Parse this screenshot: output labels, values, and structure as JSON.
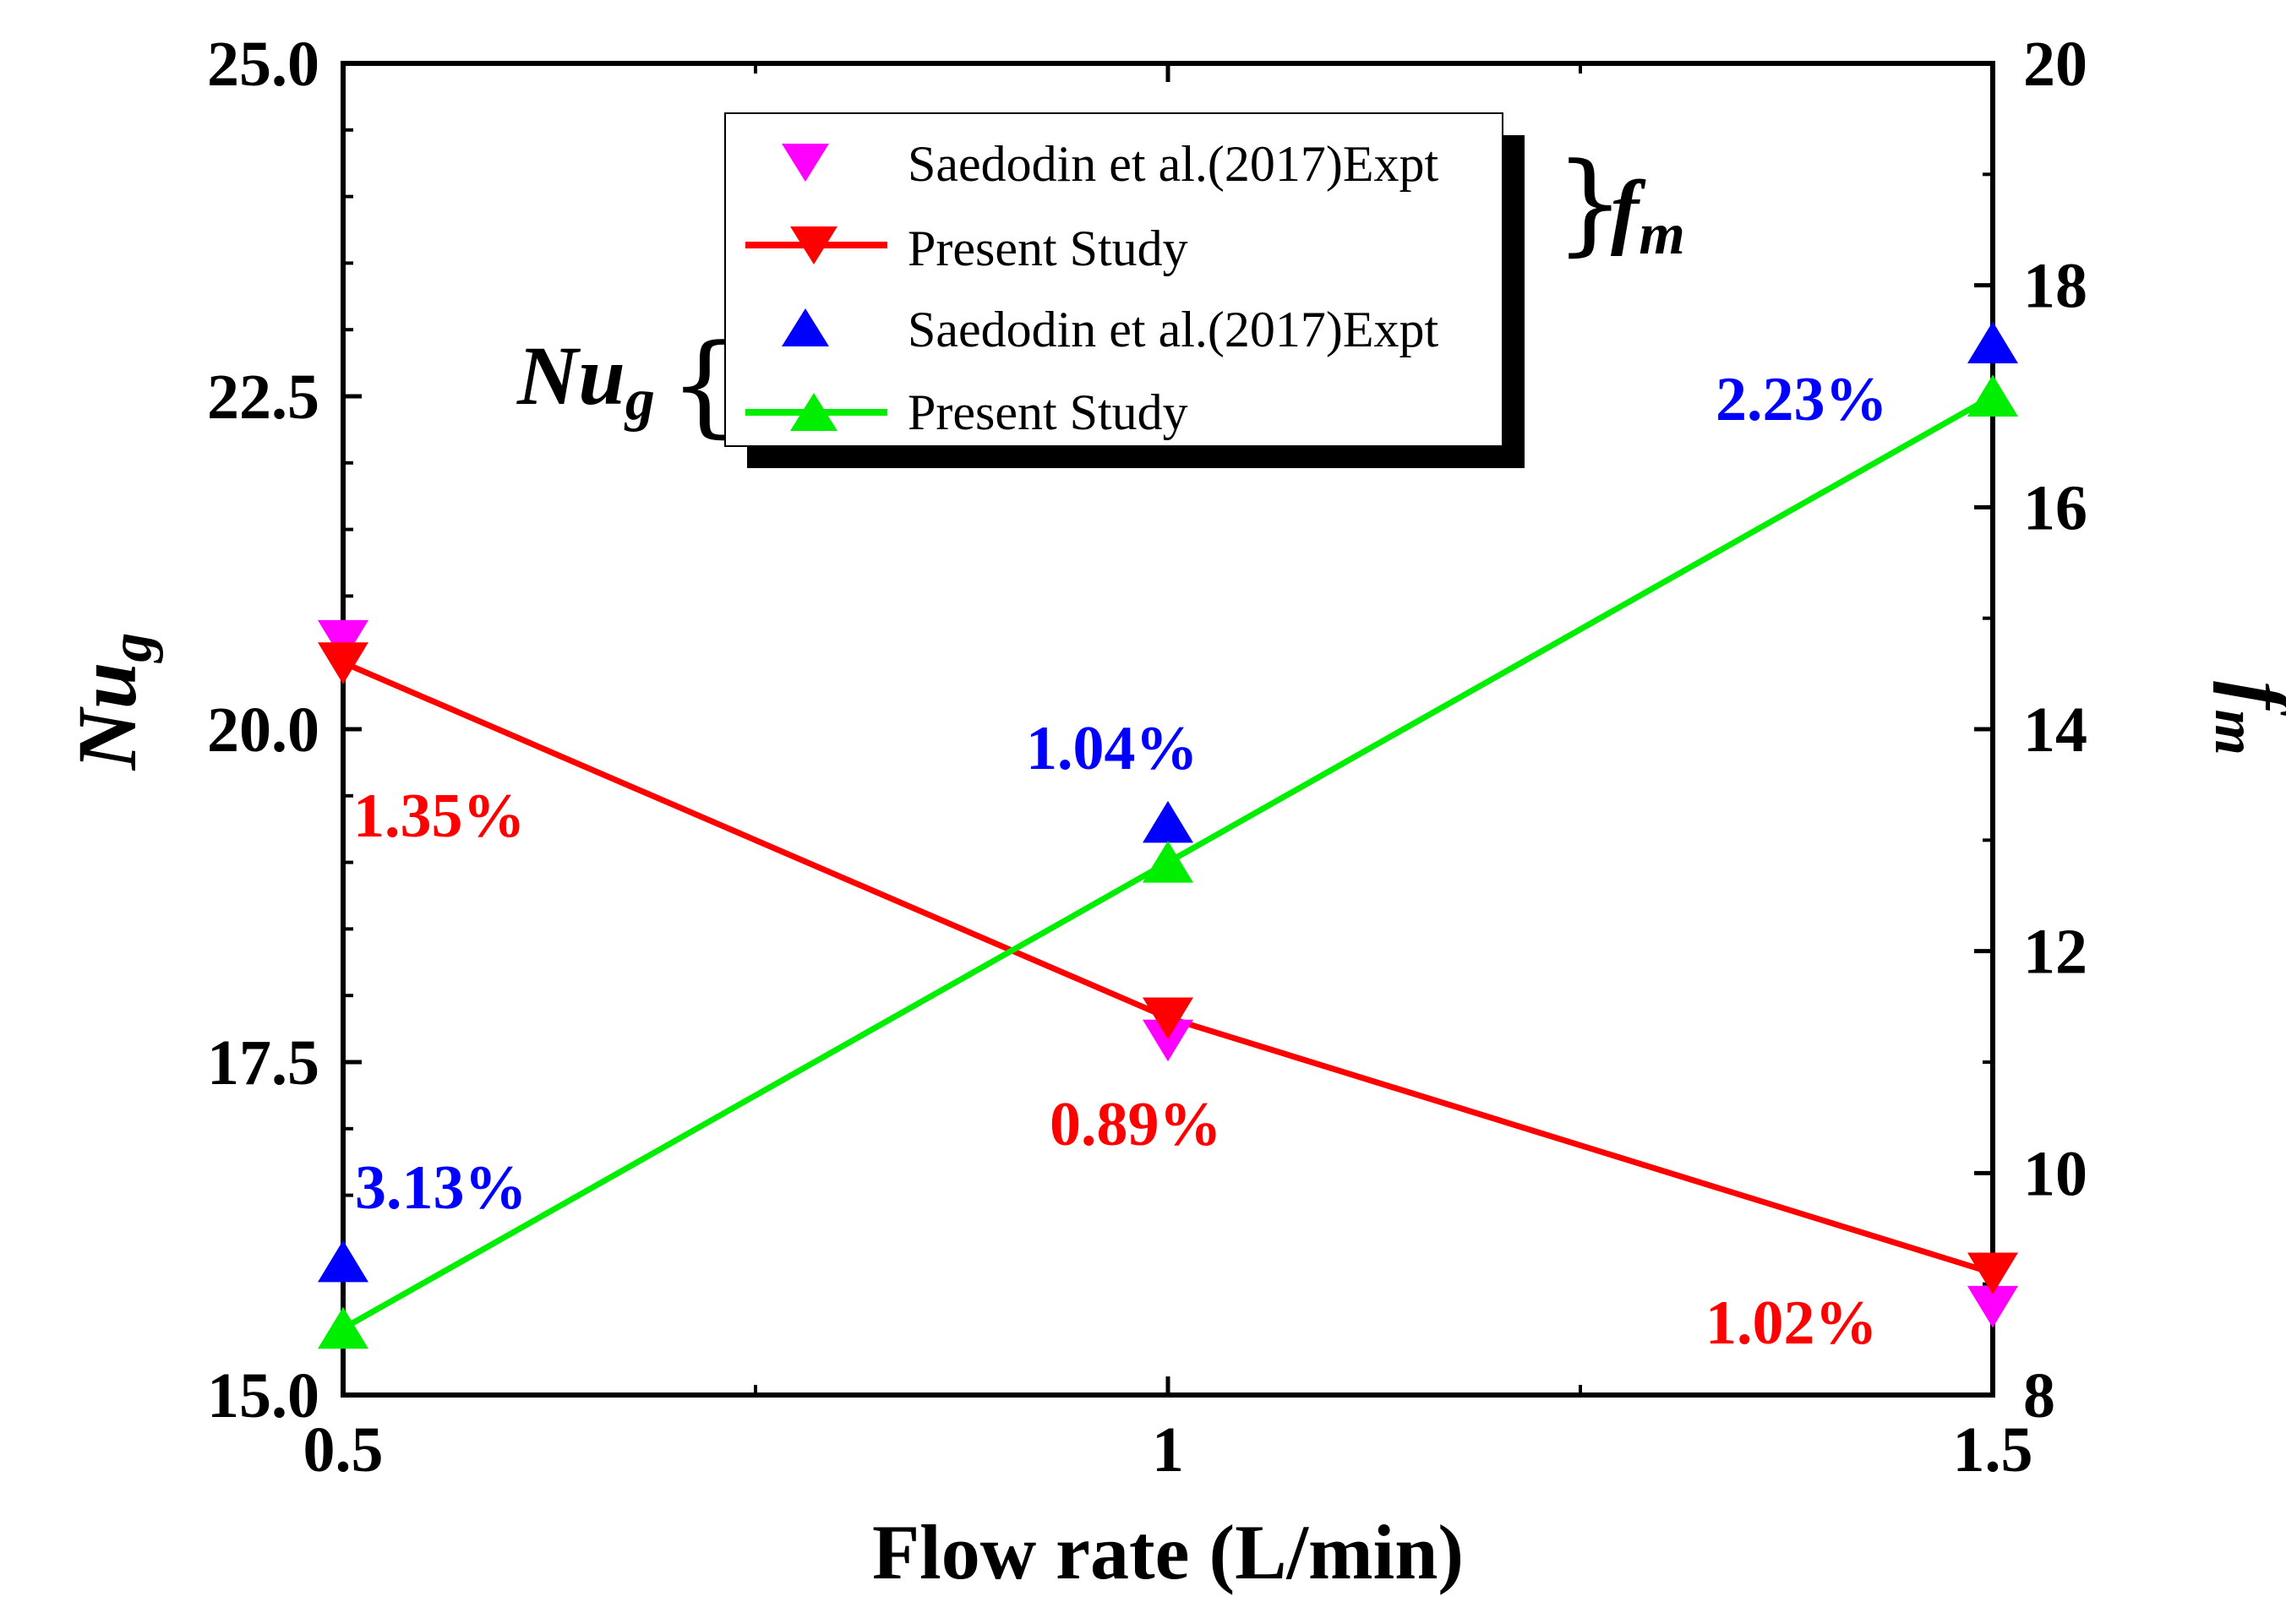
{
  "chart_data": {
    "type": "line",
    "xlabel": "Flow rate (L/min)",
    "x": [
      0.5,
      1,
      1.5
    ],
    "xticks": [
      "0.5",
      "1",
      "1.5"
    ],
    "xlim": [
      0.5,
      1.5
    ],
    "left_axis": {
      "label_main": "Nu",
      "label_sub": "g",
      "ylim": [
        15.0,
        25.0
      ],
      "major_ticks": [
        "15.0",
        "17.5",
        "20.0",
        "22.5",
        "25.0"
      ]
    },
    "right_axis": {
      "label_main": "f",
      "label_sub": "m",
      "ylim": [
        8,
        20
      ],
      "major_ticks": [
        "8",
        "10",
        "12",
        "14",
        "16",
        "18",
        "20"
      ]
    },
    "series": [
      {
        "name": "Saedodin et al.(2017)Expt",
        "group": "fm",
        "axis": "right",
        "marker": "triangle-down",
        "line": false,
        "color": "#ff00ff",
        "x": [
          0.5,
          1,
          1.5
        ],
        "values": [
          14.8,
          11.2,
          8.8
        ]
      },
      {
        "name": "Present Study",
        "group": "fm",
        "axis": "right",
        "marker": "triangle-down",
        "line": true,
        "color": "#ff0000",
        "x": [
          0.5,
          1,
          1.5
        ],
        "values": [
          14.6,
          11.4,
          9.1
        ]
      },
      {
        "name": "Saedodin et al.(2017)Expt",
        "group": "Nug",
        "axis": "left",
        "marker": "triangle-up",
        "line": false,
        "color": "#0000ff",
        "x": [
          0.5,
          1,
          1.5
        ],
        "values": [
          16.0,
          19.3,
          22.9
        ]
      },
      {
        "name": "Present Study",
        "group": "Nug",
        "axis": "left",
        "marker": "triangle-up",
        "line": true,
        "color": "#00ee00",
        "x": [
          0.5,
          1,
          1.5
        ],
        "values": [
          15.5,
          19.0,
          22.5
        ]
      }
    ],
    "annotations": [
      {
        "text": "1.35%",
        "color": "#ff0000"
      },
      {
        "text": "0.89%",
        "color": "#ff0000"
      },
      {
        "text": "1.02%",
        "color": "#ff0000"
      },
      {
        "text": "3.13%",
        "color": "#0000ff"
      },
      {
        "text": "1.04%",
        "color": "#0000ff"
      },
      {
        "text": "2.23%",
        "color": "#0000ff"
      }
    ],
    "legend": {
      "placement": "top-center",
      "group_labels": {
        "fm_main": "f",
        "fm_sub": "m",
        "nug_main": "Nu",
        "nug_sub": "g"
      }
    }
  }
}
